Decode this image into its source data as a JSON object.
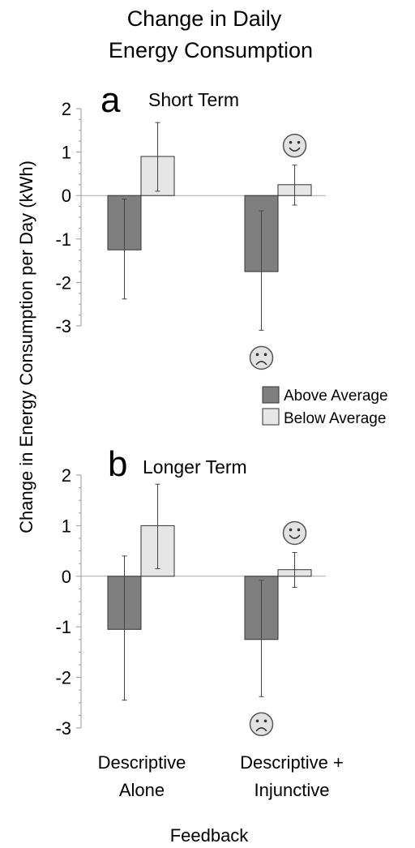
{
  "chart_data": {
    "title": [
      "Change in Daily",
      "Energy Consumption"
    ],
    "ylabel": "Change in Energy Consumption per Day (kWh)",
    "xlabel": "Feedback",
    "categories": [
      [
        "Descriptive",
        "Alone"
      ],
      [
        "Descriptive +",
        "Injunctive"
      ]
    ],
    "legend": {
      "placement": "middle-right",
      "entries": [
        {
          "label": "Above Average",
          "color": "#7f7f7f"
        },
        {
          "label": "Below Average",
          "color": "#e6e6e6"
        }
      ]
    },
    "panels": [
      {
        "letter": "a",
        "title": "Short Term",
        "type": "bar",
        "ylim": [
          -3,
          2
        ],
        "yticks": [
          "2",
          "1",
          "0",
          "-1",
          "-2",
          "-3"
        ],
        "series": [
          {
            "name": "Above Average",
            "values": [
              -1.25,
              -1.75
            ],
            "err_low": [
              -2.38,
              -3.1
            ],
            "err_high": [
              -0.08,
              -0.35
            ]
          },
          {
            "name": "Below Average",
            "values": [
              0.9,
              0.25
            ],
            "err_low": [
              0.1,
              -0.22
            ],
            "err_high": [
              1.68,
              0.7
            ]
          }
        ],
        "faces": [
          {
            "category": 1,
            "series": "Below Average",
            "icon": "smiley-face-icon"
          },
          {
            "category": 1,
            "series": "Above Average",
            "icon": "frowning-face-icon"
          }
        ]
      },
      {
        "letter": "b",
        "title": "Longer Term",
        "type": "bar",
        "ylim": [
          -3,
          2
        ],
        "yticks": [
          "2",
          "1",
          "0",
          "-1",
          "-2",
          "-3"
        ],
        "series": [
          {
            "name": "Above Average",
            "values": [
              -1.05,
              -1.25
            ],
            "err_low": [
              -2.45,
              -2.38
            ],
            "err_high": [
              0.4,
              -0.08
            ]
          },
          {
            "name": "Below Average",
            "values": [
              1.0,
              0.13
            ],
            "err_low": [
              0.15,
              -0.22
            ],
            "err_high": [
              1.82,
              0.47
            ]
          }
        ],
        "faces": [
          {
            "category": 1,
            "series": "Below Average",
            "icon": "smiley-face-icon"
          },
          {
            "category": 1,
            "series": "Above Average",
            "icon": "frowning-face-icon"
          }
        ]
      }
    ]
  }
}
